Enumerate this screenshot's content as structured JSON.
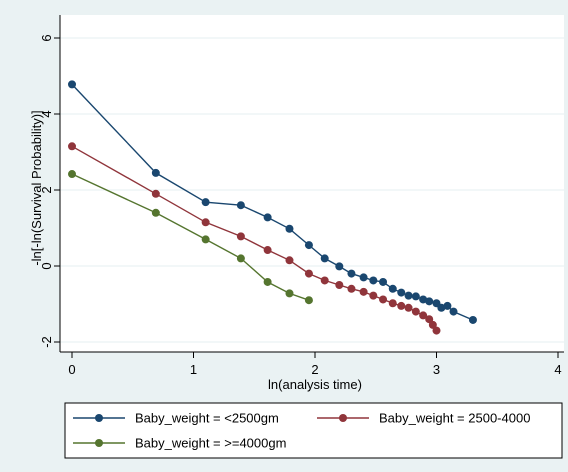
{
  "chart_data": {
    "type": "line",
    "title": "",
    "xlabel": "ln(analysis time)",
    "ylabel": "-ln[-ln(Survival Probability)]",
    "xlim": [
      0,
      4
    ],
    "ylim": [
      -2,
      6
    ],
    "xticks": [
      "0",
      "1",
      "2",
      "3",
      "4"
    ],
    "yticks": [
      "-2",
      "0",
      "2",
      "4",
      "6"
    ],
    "grid": "horizontal",
    "legend": "bottom",
    "series": [
      {
        "name": "Baby_weight = <2500gm",
        "color": "#1a476f",
        "x": [
          0,
          0.69,
          1.1,
          1.39,
          1.61,
          1.79,
          1.95,
          2.08,
          2.2,
          2.3,
          2.4,
          2.48,
          2.56,
          2.64,
          2.71,
          2.77,
          2.83,
          2.89,
          2.94,
          3.0,
          3.04,
          3.09,
          3.14,
          3.3
        ],
        "y": [
          4.78,
          2.45,
          1.68,
          1.6,
          1.28,
          0.98,
          0.55,
          0.2,
          -0.01,
          -0.2,
          -0.3,
          -0.38,
          -0.42,
          -0.6,
          -0.7,
          -0.78,
          -0.8,
          -0.88,
          -0.93,
          -0.98,
          -1.1,
          -1.05,
          -1.2,
          -1.42
        ]
      },
      {
        "name": "Baby_weight = 2500-4000",
        "color": "#90353b",
        "x": [
          0,
          0.69,
          1.1,
          1.39,
          1.61,
          1.79,
          1.95,
          2.08,
          2.2,
          2.3,
          2.4,
          2.48,
          2.56,
          2.64,
          2.71,
          2.77,
          2.83,
          2.89,
          2.94,
          2.97,
          3.0
        ],
        "y": [
          3.15,
          1.9,
          1.15,
          0.78,
          0.42,
          0.15,
          -0.2,
          -0.38,
          -0.5,
          -0.6,
          -0.68,
          -0.78,
          -0.88,
          -0.98,
          -1.05,
          -1.1,
          -1.2,
          -1.3,
          -1.4,
          -1.55,
          -1.7
        ]
      },
      {
        "name": "Baby_weight = >=4000gm",
        "color": "#55752f",
        "x": [
          0,
          0.69,
          1.1,
          1.39,
          1.61,
          1.79,
          1.95
        ],
        "y": [
          2.42,
          1.4,
          0.7,
          0.2,
          -0.42,
          -0.72,
          -0.9
        ]
      }
    ]
  }
}
